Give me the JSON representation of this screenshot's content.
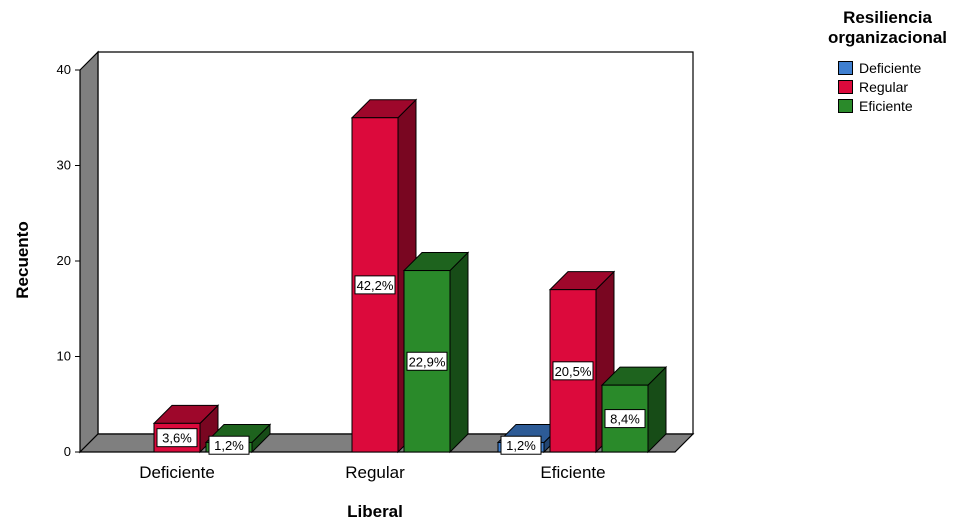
{
  "chart_data": {
    "type": "bar",
    "style": "3d-clustered",
    "xlabel": "Liberal",
    "ylabel": "Recuento",
    "ylim": [
      0,
      40
    ],
    "yticks": [
      "0",
      "10",
      "20",
      "30",
      "40"
    ],
    "categories": [
      "Deficiente",
      "Regular",
      "Eficiente"
    ],
    "legend": {
      "title": "Resiliencia organizacional",
      "placement": "top-right"
    },
    "series": [
      {
        "name": "Deficiente",
        "color": "#3f7fd0",
        "values": [
          0,
          0,
          1
        ],
        "labels": [
          "",
          "",
          "1,2%"
        ]
      },
      {
        "name": "Regular",
        "color": "#dc0a3c",
        "values": [
          3,
          35,
          17
        ],
        "labels": [
          "3,6%",
          "42,2%",
          "20,5%"
        ]
      },
      {
        "name": "Eficiente",
        "color": "#2a8a2a",
        "values": [
          1,
          19,
          7
        ],
        "labels": [
          "1,2%",
          "22,9%",
          "8,4%"
        ]
      }
    ],
    "grid": false
  }
}
